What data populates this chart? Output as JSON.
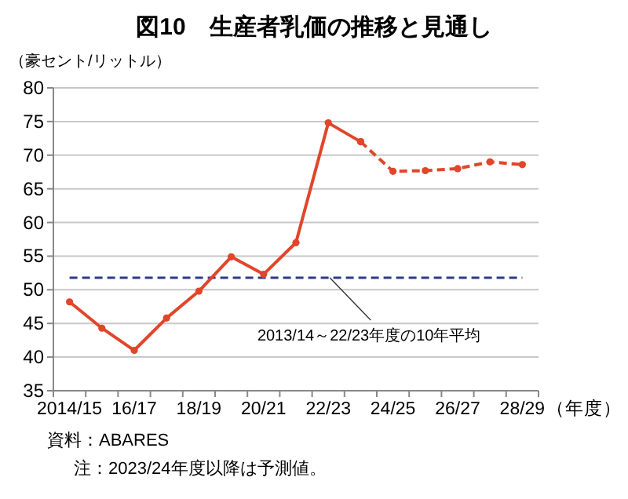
{
  "chart_data": {
    "type": "line",
    "title": "図10　生産者乳価の推移と見通し",
    "ylabel": "（豪セント/リットル）",
    "xlabel": "（年度）",
    "categories": [
      "2014/15",
      null,
      "16/17",
      null,
      "18/19",
      null,
      "20/21",
      null,
      "22/23",
      null,
      "24/25",
      null,
      "26/27",
      null,
      "28/29"
    ],
    "series": [
      {
        "color": "#e0462a",
        "line_style": "solid",
        "values": [
          48.2,
          44.3,
          41.0,
          45.8,
          49.8,
          54.9,
          52.3,
          57.0,
          74.8,
          72.0,
          null,
          null,
          null,
          null,
          null
        ]
      },
      {
        "color": "#e0462a",
        "line_style": "dashed",
        "values": [
          null,
          null,
          null,
          null,
          null,
          null,
          null,
          null,
          null,
          72.0,
          67.6,
          67.7,
          68.0,
          69.0,
          68.6
        ]
      }
    ],
    "ref_lines": [
      {
        "axis": "y",
        "value": 51.8,
        "label": "2013/14～22/23年度の10年平均",
        "color": "#2e3a8c",
        "line_style": "dashed"
      }
    ],
    "ylim": [
      35,
      80
    ],
    "yticks": [
      35,
      40,
      45,
      50,
      55,
      60,
      65,
      70,
      75,
      80
    ],
    "grid": "y",
    "marker": "circle",
    "annotations": [
      "資料：ABARES",
      "注：2023/24年度以降は予測値。"
    ]
  }
}
